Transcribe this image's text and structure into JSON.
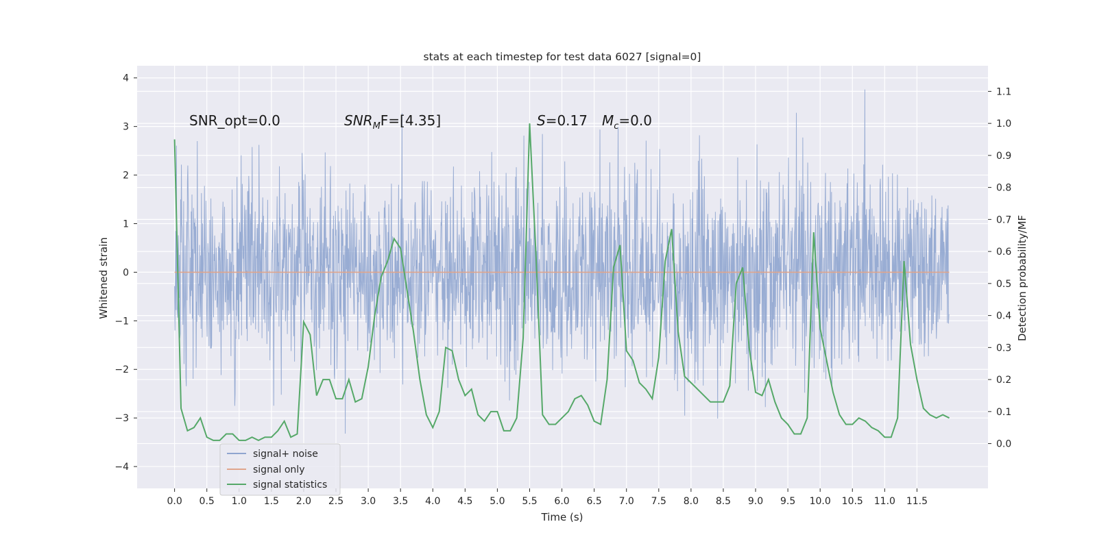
{
  "chart_data": {
    "type": "line",
    "title": "stats at each timestep for test data 6027 [signal=0]",
    "xlabel": "Time (s)",
    "ylabel": "Whitened strain",
    "y2label": "Detection probability/MF",
    "xlim": [
      -0.58,
      12.6
    ],
    "ylim": [
      -4.45,
      4.25
    ],
    "y2lim": [
      -0.14,
      1.18
    ],
    "x_ticks": [
      "0.0",
      "0.5",
      "1.0",
      "1.5",
      "2.0",
      "2.5",
      "3.0",
      "3.5",
      "4.0",
      "4.5",
      "5.0",
      "5.5",
      "6.0",
      "6.5",
      "7.0",
      "7.5",
      "8.0",
      "8.5",
      "9.0",
      "9.5",
      "10.0",
      "10.5",
      "11.0",
      "11.5"
    ],
    "y_ticks": [
      "4",
      "3",
      "2",
      "1",
      "0",
      "−1",
      "−2",
      "−3",
      "−4"
    ],
    "y2_ticks": [
      "1.1",
      "1.0",
      "0.9",
      "0.8",
      "0.7",
      "0.6",
      "0.5",
      "0.4",
      "0.3",
      "0.2",
      "0.1",
      "0.0"
    ],
    "grid": true,
    "legend_placement": "lower-left",
    "annotations": {
      "snr_opt": "SNR_opt=0.0",
      "snr_mf_main": "SNR",
      "snr_mf_sub": "M",
      "snr_mf_tail": "F=[4.35]",
      "s_sym": "S",
      "s_val": "=0.17",
      "mc_sym": "M",
      "mc_sub": "c",
      "mc_val": "=0.0"
    },
    "noise_envelope": {
      "x_range": [
        0.0,
        12.0
      ],
      "typical_range": [
        -2.0,
        2.2
      ],
      "extreme_range": [
        -4.1,
        3.85
      ]
    },
    "series": [
      {
        "name": "signal+ noise",
        "color": "#8fa5cf",
        "axis": "left",
        "description_values": "dense noise, |y| mostly < 2.5"
      },
      {
        "name": "signal only",
        "color": "#e0a58c",
        "axis": "left",
        "x": [
          0.0,
          12.0
        ],
        "y": [
          0.0,
          0.0
        ]
      },
      {
        "name": "signal statistics",
        "color": "#55a868",
        "axis": "right",
        "x": [
          0.0,
          0.1,
          0.2,
          0.3,
          0.4,
          0.5,
          0.6,
          0.7,
          0.8,
          0.9,
          1.0,
          1.1,
          1.2,
          1.3,
          1.4,
          1.5,
          1.6,
          1.7,
          1.8,
          1.9,
          2.0,
          2.1,
          2.2,
          2.3,
          2.4,
          2.5,
          2.6,
          2.7,
          2.8,
          2.9,
          3.0,
          3.1,
          3.2,
          3.3,
          3.4,
          3.5,
          3.6,
          3.7,
          3.8,
          3.9,
          4.0,
          4.1,
          4.2,
          4.3,
          4.4,
          4.5,
          4.6,
          4.7,
          4.8,
          4.9,
          5.0,
          5.1,
          5.2,
          5.3,
          5.4,
          5.5,
          5.6,
          5.7,
          5.8,
          5.9,
          6.0,
          6.1,
          6.2,
          6.3,
          6.4,
          6.5,
          6.6,
          6.7,
          6.8,
          6.9,
          7.0,
          7.1,
          7.2,
          7.3,
          7.4,
          7.5,
          7.6,
          7.7,
          7.8,
          7.9,
          8.0,
          8.1,
          8.2,
          8.3,
          8.4,
          8.5,
          8.6,
          8.7,
          8.8,
          8.9,
          9.0,
          9.1,
          9.2,
          9.3,
          9.4,
          9.5,
          9.6,
          9.7,
          9.8,
          9.9,
          10.0,
          10.1,
          10.2,
          10.3,
          10.4,
          10.5,
          10.6,
          10.7,
          10.8,
          10.9,
          11.0,
          11.1,
          11.2,
          11.3,
          11.4,
          11.5,
          11.6,
          11.7,
          11.8,
          11.9,
          12.0
        ],
        "y": [
          0.95,
          0.11,
          0.04,
          0.05,
          0.08,
          0.02,
          0.01,
          0.01,
          0.03,
          0.03,
          0.01,
          0.01,
          0.02,
          0.01,
          0.02,
          0.02,
          0.04,
          0.07,
          0.02,
          0.03,
          0.38,
          0.34,
          0.15,
          0.2,
          0.2,
          0.14,
          0.14,
          0.2,
          0.13,
          0.14,
          0.24,
          0.4,
          0.52,
          0.57,
          0.64,
          0.61,
          0.48,
          0.35,
          0.2,
          0.09,
          0.05,
          0.1,
          0.3,
          0.29,
          0.2,
          0.15,
          0.17,
          0.09,
          0.07,
          0.1,
          0.1,
          0.04,
          0.04,
          0.08,
          0.33,
          1.0,
          0.58,
          0.09,
          0.06,
          0.06,
          0.08,
          0.1,
          0.14,
          0.15,
          0.12,
          0.07,
          0.06,
          0.2,
          0.55,
          0.62,
          0.29,
          0.26,
          0.19,
          0.17,
          0.14,
          0.27,
          0.57,
          0.67,
          0.35,
          0.21,
          0.19,
          0.17,
          0.15,
          0.13,
          0.13,
          0.13,
          0.18,
          0.5,
          0.55,
          0.3,
          0.16,
          0.15,
          0.2,
          0.13,
          0.08,
          0.06,
          0.03,
          0.03,
          0.08,
          0.66,
          0.36,
          0.26,
          0.16,
          0.09,
          0.06,
          0.06,
          0.08,
          0.07,
          0.05,
          0.04,
          0.02,
          0.02,
          0.08,
          0.57,
          0.31,
          0.2,
          0.11,
          0.09,
          0.08,
          0.09,
          0.08
        ]
      }
    ]
  }
}
